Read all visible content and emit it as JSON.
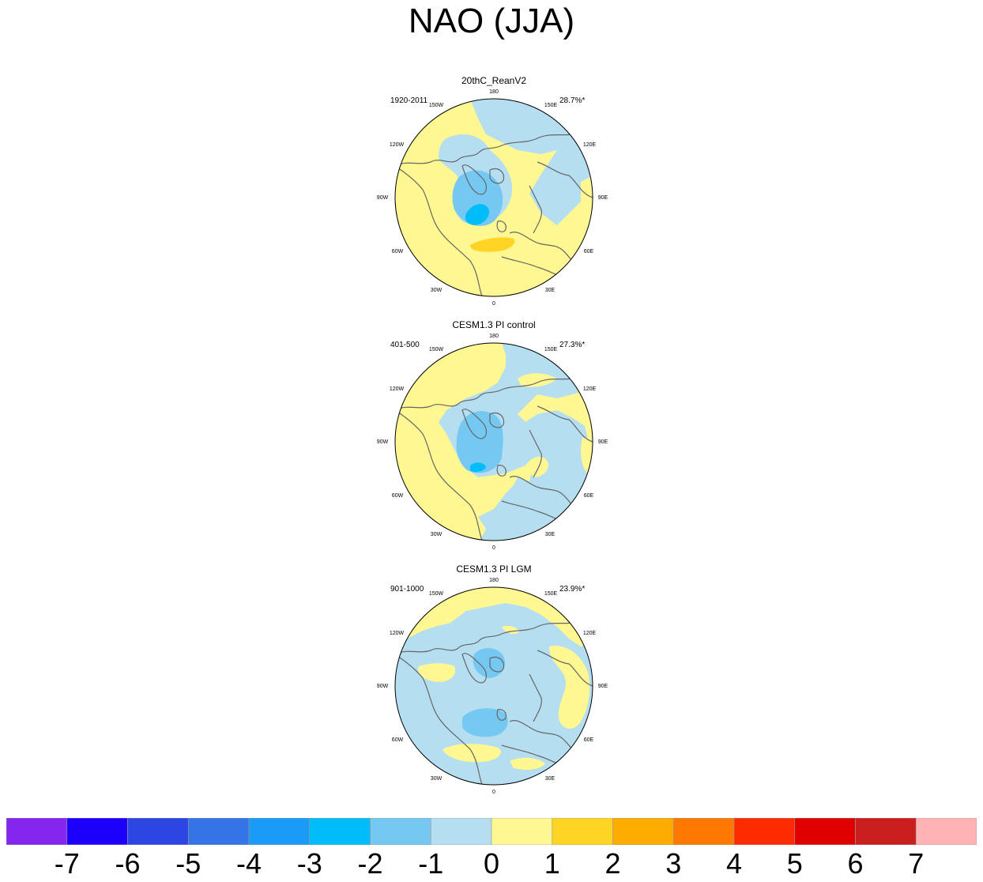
{
  "title": "NAO (JJA)",
  "panels": [
    {
      "title": "20thC_ReanV2",
      "period": "1920-2011",
      "variance": "28.7%*"
    },
    {
      "title": "CESM1.3 PI control",
      "period": "401-500",
      "variance": "27.3%*"
    },
    {
      "title": "CESM1.3 PI LGM",
      "period": "901-1000",
      "variance": "23.9%*"
    }
  ],
  "longitude_labels": [
    "180",
    "150E",
    "120E",
    "90E",
    "60E",
    "30E",
    "0",
    "30W",
    "60W",
    "90W",
    "120W",
    "150W"
  ],
  "colorbar": {
    "labels": [
      "-7",
      "-6",
      "-5",
      "-4",
      "-3",
      "-2",
      "-1",
      "0",
      "1",
      "2",
      "3",
      "4",
      "5",
      "6",
      "7"
    ],
    "colors": [
      "#8526ee",
      "#1c00fb",
      "#2c45e3",
      "#3474e6",
      "#1a9bf6",
      "#00bcf8",
      "#74c8f1",
      "#b5dff1",
      "#fff791",
      "#ffd424",
      "#ffab00",
      "#ff7800",
      "#ff2b00",
      "#e00000",
      "#cb1e1f",
      "#ffb3b3"
    ]
  },
  "colors": {
    "neg1": "#b5dff1",
    "neg2": "#74c8f1",
    "neg3": "#00bcf8",
    "neg4": "#1a9bf6",
    "pos1": "#fff791",
    "pos2": "#ffd424",
    "coast": "#666666"
  }
}
